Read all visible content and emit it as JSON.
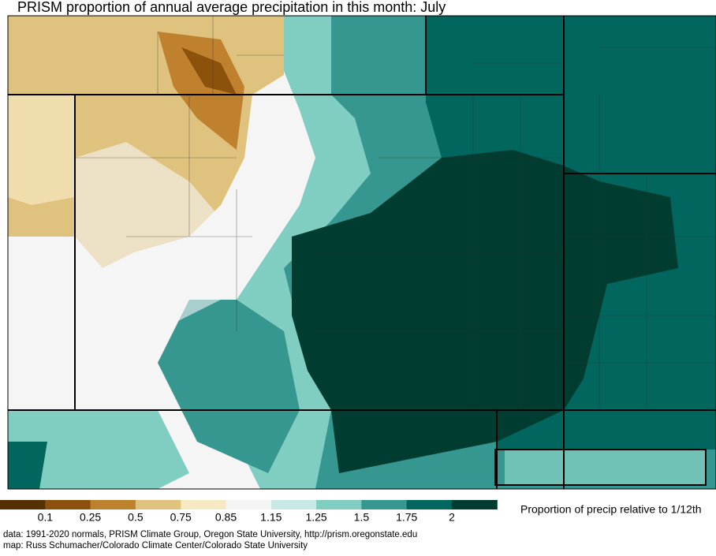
{
  "header": {
    "title": "PRISM proportion of annual average precipitation in this month: July"
  },
  "legend": {
    "title": "Proportion of precip relative to 1/12th",
    "labels": [
      "0.1",
      "0.25",
      "0.5",
      "0.75",
      "0.85",
      "1.15",
      "1.25",
      "1.5",
      "1.75",
      "2"
    ],
    "colors": [
      "#543005",
      "#8c510a",
      "#bf812d",
      "#dfc27d",
      "#f6e8c3",
      "#f5f5f5",
      "#c7eae5",
      "#80cdc1",
      "#35978f",
      "#01665e",
      "#003c30"
    ]
  },
  "credits": [
    "data: 1991-2020 normals, PRISM Climate Group, Oregon State University, http://prism.oregonstate.edu",
    "map: Russ Schumacher/Colorado Climate Center/Colorado State University"
  ]
}
